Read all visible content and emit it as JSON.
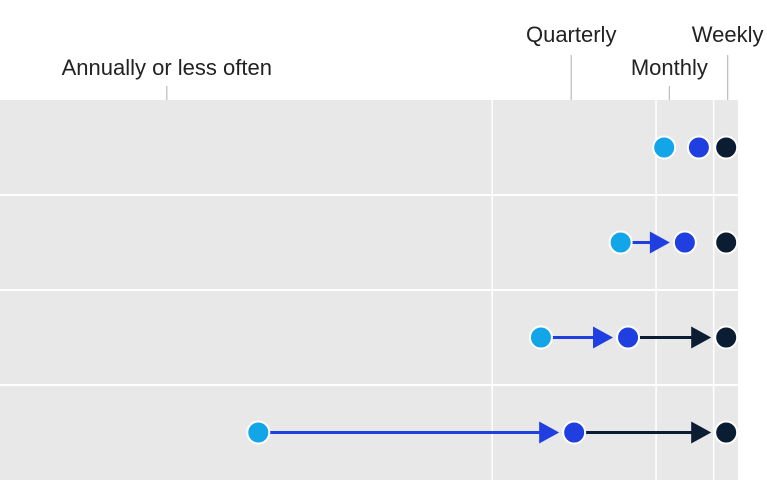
{
  "chart_data": {
    "type": "dot-arrow",
    "categories": [
      null,
      null,
      null,
      null
    ],
    "series": [
      {
        "color": "#12a5e8",
        "values": [
          90,
          84.1,
          73.3,
          35
        ]
      },
      {
        "color": "#1f3fe0",
        "values": [
          94.7,
          92.8,
          85.1,
          77.8
        ]
      },
      {
        "color": "#0b1d33",
        "values": [
          98.4,
          98.4,
          98.4,
          98.4
        ]
      }
    ],
    "xlim": [
      0,
      100
    ],
    "xticks": [
      {
        "value": 22.6,
        "label": "Annually or less often"
      },
      {
        "value": 77.4,
        "label": "Quarterly"
      },
      {
        "value": 90.7,
        "label": "Monthly"
      },
      {
        "value": 98.6,
        "label": "Weekly"
      }
    ],
    "gridlines": [
      66.7,
      88.9,
      96.7
    ]
  }
}
